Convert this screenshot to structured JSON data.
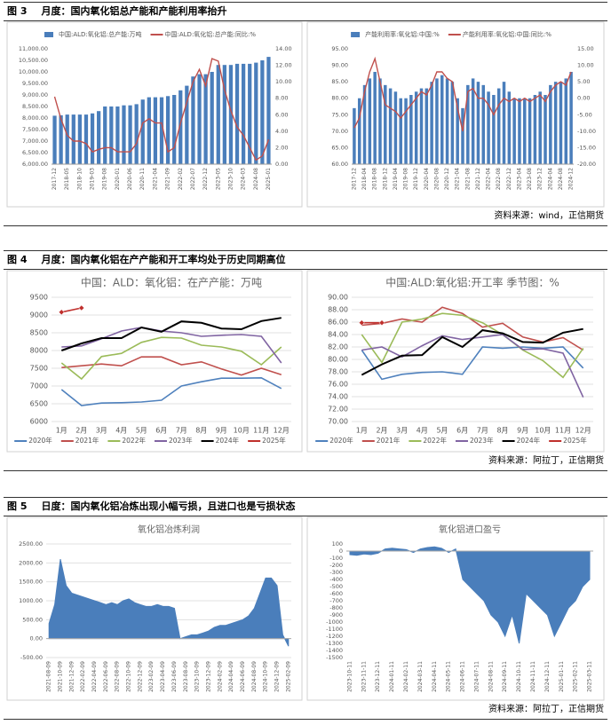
{
  "figures": [
    {
      "label": "图 3",
      "title": "月度：国内氧化铝总产能和产能利用率抬升",
      "source": "资料来源：wind，正信期货"
    },
    {
      "label": "图 4",
      "title": "月度：国内氧化铝在产产能和开工率均处于历史同期高位",
      "source": "资料来源：阿拉丁，正信期货"
    },
    {
      "label": "图 5",
      "title": "日度：国内氧化铝冶炼出现小幅亏损，且进口也是亏损状态",
      "source": "资料来源：阿拉丁，正信期货"
    }
  ],
  "chart_data": [
    {
      "type": "bar_line",
      "legend": "top",
      "categories": [
        "2017-12",
        null,
        "2018-05",
        null,
        "2018-10",
        null,
        "2019-03",
        null,
        "2019-08",
        null,
        "2020-01",
        null,
        "2020-06",
        null,
        "2020-11",
        null,
        "2021-04",
        null,
        "2021-09",
        null,
        "2022-02",
        null,
        "2022-07",
        null,
        "2022-12",
        null,
        "2023-05",
        null,
        "2023-10",
        null,
        "2024-03",
        null,
        "2024-08",
        null,
        "2025-01"
      ],
      "series": [
        {
          "name": "中国:ALD:氧化铝:总产能:万吨",
          "type": "bar",
          "color": "#4a7ebb",
          "values": [
            8100,
            8120,
            8150,
            8150,
            8150,
            8150,
            8200,
            8300,
            8500,
            8500,
            8500,
            8550,
            8550,
            8600,
            8800,
            8900,
            8900,
            8900,
            8950,
            9000,
            9200,
            9400,
            9800,
            9900,
            9900,
            10000,
            10300,
            10300,
            10300,
            10350,
            10350,
            10350,
            10400,
            10500,
            10650
          ]
        },
        {
          "name": "中国:ALD:氧化铝:总产能:同比:%",
          "type": "line",
          "axis": "y2",
          "color": "#c0504d",
          "values": [
            8.2,
            5.5,
            3.5,
            2.8,
            2.8,
            2.5,
            1.5,
            1.8,
            2.0,
            2.0,
            1.5,
            1.5,
            1.5,
            2.5,
            5.0,
            5.5,
            5.0,
            5.0,
            1.5,
            2.0,
            5.0,
            7.5,
            10.0,
            11.5,
            9.5,
            12.8,
            12.5,
            9.0,
            6.5,
            4.5,
            3.5,
            2.0,
            0.5,
            1.0,
            3.0
          ]
        }
      ],
      "ylim": [
        6000,
        11000
      ],
      "yticks": [
        {
          "value": 6000,
          "label": "6,000.00"
        },
        {
          "value": 6500,
          "label": "6,500.00"
        },
        {
          "value": 7000,
          "label": "7,000.00"
        },
        {
          "value": 7500,
          "label": "7,500.00"
        },
        {
          "value": 8000,
          "label": "8,000.00"
        },
        {
          "value": 8500,
          "label": "8,500.00"
        },
        {
          "value": 9000,
          "label": "9,000.00"
        },
        {
          "value": 9500,
          "label": "9,500.00"
        },
        {
          "value": 10000,
          "label": "10,000.00"
        },
        {
          "value": 10500,
          "label": "10,500.00"
        },
        {
          "value": 11000,
          "label": "11,000.00"
        }
      ],
      "y2lim": [
        0,
        14
      ],
      "y2ticks": [
        {
          "value": 0,
          "label": "0.00"
        },
        {
          "value": 2,
          "label": "2.00"
        },
        {
          "value": 4,
          "label": "4.00"
        },
        {
          "value": 6,
          "label": "6.00"
        },
        {
          "value": 8,
          "label": "8.00"
        },
        {
          "value": 10,
          "label": "10.00"
        },
        {
          "value": 12,
          "label": "12.00"
        },
        {
          "value": 14,
          "label": "14.00"
        }
      ],
      "grid": false
    },
    {
      "type": "bar_line",
      "legend": "top",
      "categories": [
        "2017-12",
        null,
        "2018-04",
        null,
        "2018-08",
        null,
        "2018-12",
        null,
        "2019-04",
        null,
        "2019-08",
        null,
        "2019-12",
        null,
        "2020-04",
        null,
        "2020-08",
        null,
        "2020-12",
        null,
        "2021-04",
        null,
        "2021-08",
        null,
        "2021-12",
        null,
        "2022-04",
        null,
        "2022-08",
        null,
        "2022-12",
        null,
        "2023-04",
        null,
        "2023-08",
        null,
        "2023-12",
        null,
        "2024-04",
        null,
        "2024-08",
        null,
        "2024-12"
      ],
      "series": [
        {
          "name": "产能利用率:氧化铝:中国:%",
          "type": "bar",
          "color": "#4a7ebb",
          "values": [
            77,
            80,
            84,
            86,
            88,
            86,
            84,
            83,
            82,
            80,
            80,
            81,
            82,
            83,
            83,
            85,
            86,
            87,
            86,
            85,
            80,
            77,
            84,
            86,
            85,
            84,
            82,
            81,
            83,
            85,
            82,
            80,
            80,
            80,
            80,
            81,
            82,
            81,
            84,
            85,
            85,
            86,
            88
          ]
        },
        {
          "name": "产能利用率:氧化铝:中国:同比:%",
          "type": "line",
          "axis": "y2",
          "color": "#c0504d",
          "values": [
            -9,
            -6,
            2,
            8,
            12,
            5,
            -2,
            -3,
            -4,
            -6,
            -4,
            -2,
            0,
            2,
            1,
            4,
            8,
            8,
            6,
            5,
            -3,
            -10,
            2,
            3,
            0,
            0,
            -2,
            -5,
            -2,
            0,
            -1,
            0,
            -1,
            0,
            -1,
            0,
            1,
            -1,
            2,
            4,
            5,
            4,
            8
          ]
        }
      ],
      "ylim": [
        60,
        95
      ],
      "yticks": [
        {
          "value": 60,
          "label": "60.00"
        },
        {
          "value": 65,
          "label": "65.00"
        },
        {
          "value": 70,
          "label": "70.00"
        },
        {
          "value": 75,
          "label": "75.00"
        },
        {
          "value": 80,
          "label": "80.00"
        },
        {
          "value": 85,
          "label": "85.00"
        },
        {
          "value": 90,
          "label": "90.00"
        },
        {
          "value": 95,
          "label": "95.00"
        }
      ],
      "y2lim": [
        -20,
        15
      ],
      "y2ticks": [
        {
          "value": -20,
          "label": "-20.00"
        },
        {
          "value": -15,
          "label": "-15.00"
        },
        {
          "value": -10,
          "label": "-10.00"
        },
        {
          "value": -5,
          "label": "-5.00"
        },
        {
          "value": 0,
          "label": "0.00"
        },
        {
          "value": 5,
          "label": "5.00"
        },
        {
          "value": 10,
          "label": "10.00"
        },
        {
          "value": 15,
          "label": "15.00"
        }
      ],
      "grid": false
    },
    {
      "type": "line",
      "legend": "bottom",
      "title": "中国：ALD：氧化铝：在产产能：万吨",
      "categories": [
        "1月",
        "2月",
        "3月",
        "4月",
        "5月",
        "6月",
        "7月",
        "8月",
        "9月",
        "10月",
        "11月",
        "12月"
      ],
      "series": [
        {
          "name": "2020年",
          "color": "#4f81bd",
          "values": [
            6900,
            6450,
            6520,
            6530,
            6550,
            6600,
            7000,
            7120,
            7220,
            7220,
            7230,
            6930
          ]
        },
        {
          "name": "2021年",
          "color": "#c0504d",
          "values": [
            7520,
            7570,
            7620,
            7570,
            7820,
            7820,
            7600,
            7680,
            7480,
            7310,
            7500,
            7320
          ]
        },
        {
          "name": "2022年",
          "color": "#9bbb59",
          "values": [
            7650,
            7200,
            7830,
            7920,
            8230,
            8370,
            8350,
            8150,
            8100,
            7980,
            7600,
            8100
          ]
        },
        {
          "name": "2023年",
          "color": "#8064a2",
          "values": [
            8100,
            8130,
            8330,
            8550,
            8650,
            8550,
            8500,
            8400,
            8430,
            8450,
            8400,
            7650
          ]
        },
        {
          "name": "2024年",
          "color": "#000000",
          "values": [
            8000,
            8200,
            8350,
            8350,
            8650,
            8530,
            8820,
            8780,
            8620,
            8600,
            8830,
            8920
          ]
        },
        {
          "name": "2025年",
          "color": "#c0302d",
          "marker": "diamond",
          "values": [
            9080,
            9200,
            null,
            null,
            null,
            null,
            null,
            null,
            null,
            null,
            null,
            null
          ]
        }
      ],
      "ylim": [
        6000,
        9500
      ],
      "yticks": [
        6000,
        6500,
        7000,
        7500,
        8000,
        8500,
        9000,
        9500
      ],
      "grid": true
    },
    {
      "type": "line",
      "legend": "bottom",
      "title": "中国:ALD:氧化铝:开工率 季节图：%",
      "categories": [
        "1月",
        "2月",
        "3月",
        "4月",
        "5月",
        "6月",
        "7月",
        "8月",
        "9月",
        "10月",
        "11月",
        "12月"
      ],
      "series": [
        {
          "name": "2020年",
          "color": "#4f81bd",
          "values": [
            81.5,
            76.8,
            77.6,
            77.9,
            78,
            77.6,
            82,
            81.8,
            82,
            81.8,
            82,
            78.6
          ]
        },
        {
          "name": "2021年",
          "color": "#c0504d",
          "values": [
            85.5,
            85.8,
            86.5,
            86,
            88.4,
            87.4,
            85.2,
            85.8,
            83.6,
            82.8,
            83.5,
            81.5
          ]
        },
        {
          "name": "2022年",
          "color": "#9bbb59",
          "values": [
            84,
            79.5,
            86,
            86.5,
            87.4,
            87.1,
            85.9,
            84,
            81.5,
            79.8,
            77.1,
            81.8
          ]
        },
        {
          "name": "2023年",
          "color": "#8064a2",
          "values": [
            81.5,
            82,
            80.4,
            82.2,
            83.8,
            83.2,
            83.6,
            84,
            81.6,
            81.7,
            81,
            73.9
          ]
        },
        {
          "name": "2024年",
          "color": "#000000",
          "values": [
            77.5,
            79.2,
            80.6,
            80.7,
            83.6,
            82,
            84.7,
            84.2,
            82.8,
            82.7,
            84.3,
            84.9
          ]
        },
        {
          "name": "2025年",
          "color": "#c0302d",
          "marker": "diamond",
          "values": [
            85.9,
            85.9,
            null,
            null,
            null,
            null,
            null,
            null,
            null,
            null,
            null,
            null
          ]
        }
      ],
      "ylim": [
        70,
        90
      ],
      "yticks": [
        {
          "value": 70,
          "label": "70.00"
        },
        {
          "value": 72,
          "label": "72.00"
        },
        {
          "value": 74,
          "label": "74.00"
        },
        {
          "value": 76,
          "label": "76.00"
        },
        {
          "value": 78,
          "label": "78.00"
        },
        {
          "value": 80,
          "label": "80.00"
        },
        {
          "value": 82,
          "label": "82.00"
        },
        {
          "value": 84,
          "label": "84.00"
        },
        {
          "value": 86,
          "label": "86.00"
        },
        {
          "value": 88,
          "label": "88.00"
        },
        {
          "value": 90,
          "label": "90.00"
        }
      ],
      "grid": true
    },
    {
      "type": "area",
      "title": "氧化铝冶炼利润",
      "color": "#4a7ebb",
      "categories": [
        "2021-08-09",
        null,
        "2021-10-09",
        null,
        "2021-12-09",
        null,
        "2022-02-09",
        null,
        "2022-04-09",
        null,
        "2022-06-09",
        null,
        "2022-08-09",
        null,
        "2022-10-09",
        null,
        "2022-12-09",
        null,
        "2023-02-09",
        null,
        "2023-04-09",
        null,
        "2023-06-09",
        null,
        "2023-08-09",
        null,
        "2023-10-09",
        null,
        "2023-12-09",
        null,
        "2024-02-09",
        null,
        "2024-04-09",
        null,
        "2024-06-09",
        null,
        "2024-08-09",
        null,
        "2024-10-09",
        null,
        "2024-12-09",
        null,
        "2025-02-09"
      ],
      "values": [
        400,
        900,
        2100,
        1400,
        1200,
        1150,
        1100,
        1050,
        1000,
        950,
        900,
        950,
        900,
        1000,
        1050,
        950,
        900,
        850,
        850,
        900,
        850,
        850,
        800,
        0,
        50,
        100,
        100,
        150,
        200,
        300,
        350,
        350,
        400,
        450,
        500,
        600,
        800,
        1200,
        1600,
        1600,
        1400,
        100,
        -200
      ],
      "ylim": [
        -500,
        2500
      ],
      "yticks": [
        {
          "value": -500,
          "label": "-500.00"
        },
        {
          "value": 0,
          "label": "0.00"
        },
        {
          "value": 500,
          "label": "500.00"
        },
        {
          "value": 1000,
          "label": "1000.00"
        },
        {
          "value": 1500,
          "label": "1500.00"
        },
        {
          "value": 2000,
          "label": "2000.00"
        },
        {
          "value": 2500,
          "label": "2500.00"
        }
      ],
      "grid": true
    },
    {
      "type": "area",
      "title": "氧化铝进口盈亏",
      "color": "#4a7ebb",
      "categories": [
        "2023-10-11",
        null,
        "2023-11-11",
        null,
        "2023-12-11",
        null,
        "2024-01-11",
        null,
        "2024-02-11",
        null,
        "2024-03-11",
        null,
        "2024-04-11",
        null,
        "2024-05-11",
        null,
        "2024-06-11",
        null,
        "2024-07-11",
        null,
        "2024-08-11",
        null,
        "2024-09-11",
        null,
        "2024-10-11",
        null,
        "2024-11-11",
        null,
        "2024-12-11",
        null,
        "2025-01-11",
        null,
        "2025-02-11",
        null,
        "2025-03-11"
      ],
      "values": [
        -50,
        -60,
        -40,
        -50,
        -30,
        30,
        40,
        30,
        20,
        -20,
        30,
        50,
        60,
        40,
        -20,
        30,
        -400,
        -500,
        -600,
        -700,
        -900,
        -1000,
        -1200,
        -900,
        -1300,
        -600,
        -700,
        -800,
        -900,
        -1200,
        -1000,
        -800,
        -700,
        -500,
        -400
      ],
      "ylim": [
        -1500,
        100
      ],
      "yticks": [
        100,
        0,
        -100,
        -200,
        -300,
        -400,
        -500,
        -600,
        -700,
        -800,
        -900,
        -1000,
        -1100,
        -1200,
        -1300,
        -1400,
        -1500
      ],
      "grid": false
    }
  ]
}
